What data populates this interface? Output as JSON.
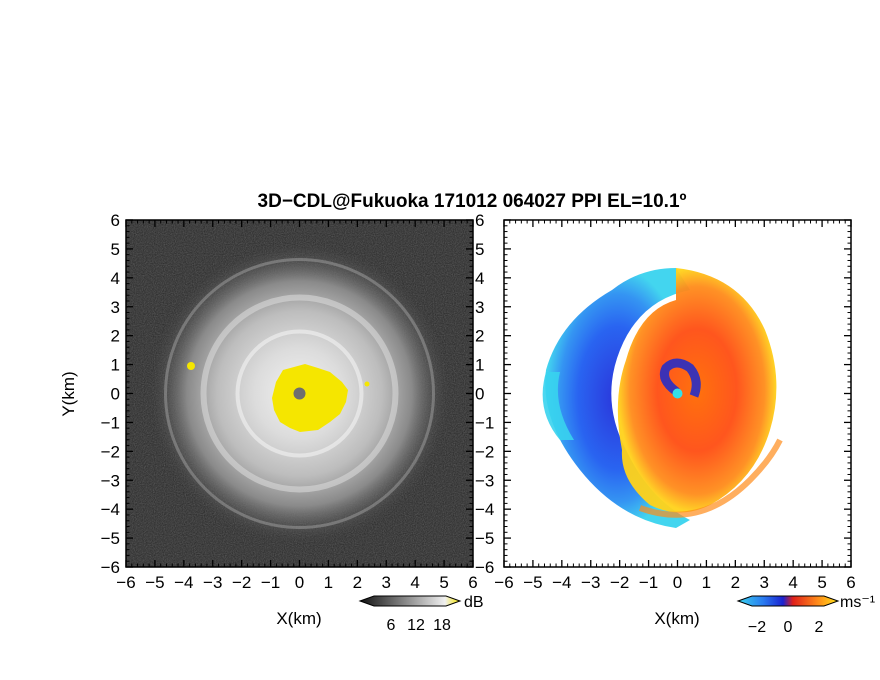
{
  "chart_data": [
    {
      "type": "heatmap",
      "panel": "left",
      "title": "3D−CDL@Fukuoka 171012 064027 PPI EL=10.1º",
      "xlabel": "X(km)",
      "ylabel": "Y(km)",
      "xlim": [
        -6,
        6
      ],
      "ylim": [
        -6,
        6
      ],
      "xticks": [
        "−6",
        "−5",
        "−4",
        "−3",
        "−2",
        "−1",
        "0",
        "1",
        "2",
        "3",
        "4",
        "5",
        "6"
      ],
      "yticks": [
        "6",
        "5",
        "4",
        "3",
        "2",
        "1",
        "0",
        "−1",
        "−2",
        "−3",
        "−4",
        "−5",
        "−6"
      ],
      "colorbar": {
        "unit": "dB",
        "ticks": [
          "6",
          "12",
          "18"
        ],
        "colormap": "grayscale-to-yellow"
      },
      "features": {
        "saturated_core_radius_km": 1.1,
        "bright_ring_radius_km": 3.2,
        "outer_ring_radius_km": 4.6,
        "blank_center_radius_km": 0.25,
        "saturation_color": "#f5e600",
        "background_color": "#262626"
      }
    },
    {
      "type": "heatmap",
      "panel": "right",
      "xlabel": "X(km)",
      "xlim": [
        -6,
        6
      ],
      "ylim": [
        -6,
        6
      ],
      "xticks": [
        "−6",
        "−5",
        "−4",
        "−3",
        "−2",
        "−1",
        "0",
        "1",
        "2",
        "3",
        "4",
        "5",
        "6"
      ],
      "yticks": [
        "6",
        "5",
        "4",
        "3",
        "2",
        "1",
        "0",
        "−1",
        "−2",
        "−3",
        "−4",
        "−5",
        "−6"
      ],
      "colorbar": {
        "unit": "ms⁻¹",
        "ticks": [
          "−2",
          "0",
          "2"
        ],
        "colormap": "cyan-blue-red-orange-yellow"
      },
      "features": {
        "approaching_side": "left/west (blue)",
        "receding_side": "right/east (red-orange)",
        "center_color": "#33e0e8",
        "data_radius_km": 5.0
      }
    }
  ]
}
